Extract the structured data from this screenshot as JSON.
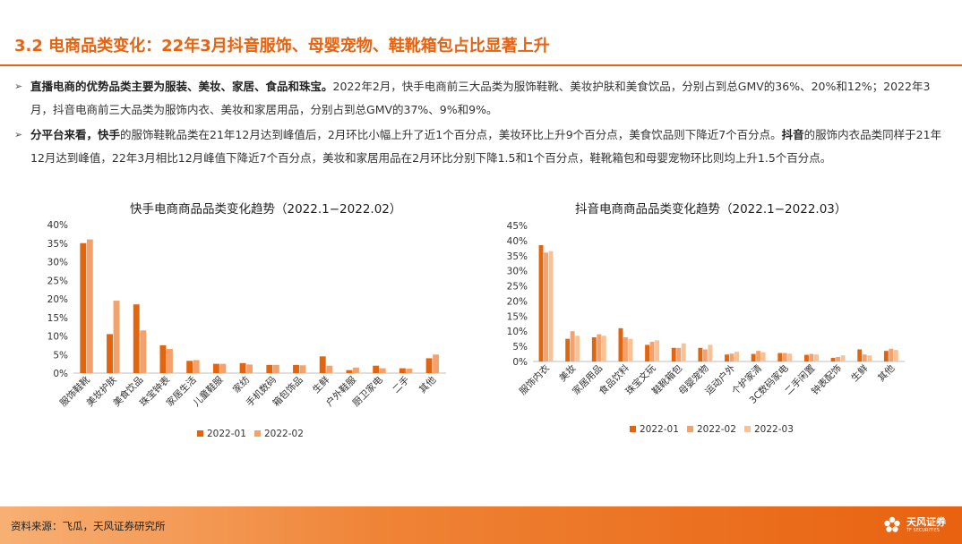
{
  "header": {
    "title": "3.2 电商品类变化：22年3月抖音服饰、母婴宠物、鞋靴箱包占比显著上升"
  },
  "bullets": [
    {
      "mark": "➢",
      "bold": "直播电商的优势品类主要为服装、美妆、家居、食品和珠宝。",
      "text": "2022年2月，快手电商前三大品类为服饰鞋靴、美妆护肤和美食饮品，分别占到总GMV的36%、20%和12%；2022年3月，抖音电商前三大品类为服饰内衣、美妆和家居用品，分别占到总GMV的37%、9%和9%。"
    },
    {
      "mark": "➢",
      "bold": "分平台来看，快手",
      "text": "的服饰鞋靴品类在21年12月达到峰值后，2月环比小幅上升了近1个百分点，美妆环比上升9个百分点，美食饮品则下降近7个百分点。",
      "bold2": "抖音",
      "text2": "的服饰内衣品类同样于21年12月达到峰值，22年3月相比12月峰值下降近7个百分点，美妆和家居用品在2月环比分别下降1.5和1个百分点，鞋靴箱包和母婴宠物环比则均上升1.5个百分点。"
    }
  ],
  "footer": {
    "source": "资料来源：飞瓜，天风证券研究所",
    "logo_name": "天风证券",
    "logo_sub": "TF SECURITIES"
  },
  "colors": {
    "accent": "#e8620f",
    "series1": "#e2650e",
    "series2": "#f4a16c",
    "series3": "#f8c196"
  },
  "chart_data": [
    {
      "type": "bar",
      "title": "快手电商商品品类变化趋势（2022.1−2022.02）",
      "categories": [
        "服饰鞋靴",
        "美妆护肤",
        "美食饮品",
        "珠宝钟表",
        "家居生活",
        "儿童鞋服",
        "家纺",
        "手机数码",
        "箱包饰品",
        "生鲜",
        "户外鞋服",
        "厨卫家电",
        "二手",
        "其他"
      ],
      "series": [
        {
          "name": "2022-01",
          "values": [
            35,
            10.5,
            18.5,
            7.5,
            3.3,
            2.5,
            2.7,
            2.2,
            2.2,
            4.5,
            0.8,
            2,
            1.3,
            4
          ]
        },
        {
          "name": "2022-02",
          "values": [
            36,
            19.5,
            11.5,
            6.5,
            3.5,
            2.5,
            2.3,
            2.2,
            2.1,
            2,
            1.5,
            1.3,
            1.2,
            5
          ]
        }
      ],
      "yticks": [
        "0%",
        "5%",
        "10%",
        "15%",
        "20%",
        "25%",
        "30%",
        "35%",
        "40%"
      ],
      "ylim": [
        0,
        40
      ],
      "legend_position": "bottom"
    },
    {
      "type": "bar",
      "title": "抖音电商商品品类变化趋势（2022.1−2022.03）",
      "categories": [
        "服饰内衣",
        "美妆",
        "家居用品",
        "食品饮料",
        "珠宝文玩",
        "鞋靴箱包",
        "母婴宠物",
        "运动户外",
        "个护家清",
        "3C数码家电",
        "二手闲置",
        "钟表配饰",
        "生鲜",
        "其他"
      ],
      "series": [
        {
          "name": "2022-01",
          "values": [
            38.5,
            7.5,
            8,
            11,
            5.5,
            4.5,
            4.5,
            2.3,
            2.5,
            2.8,
            2.2,
            1.2,
            4,
            3.5
          ]
        },
        {
          "name": "2022-02",
          "values": [
            36,
            10,
            9,
            8,
            6.5,
            4.5,
            4,
            2.6,
            3.5,
            2.8,
            2.5,
            1.5,
            2.3,
            4.2
          ]
        },
        {
          "name": "2022-03",
          "values": [
            36.5,
            8.5,
            8.5,
            7.5,
            7,
            6,
            5.5,
            3.2,
            3,
            2.6,
            2.3,
            2,
            2,
            3.8
          ]
        }
      ],
      "yticks": [
        "0%",
        "5%",
        "10%",
        "15%",
        "20%",
        "25%",
        "30%",
        "35%",
        "40%",
        "45%"
      ],
      "ylim": [
        0,
        45
      ],
      "legend_position": "bottom"
    }
  ]
}
